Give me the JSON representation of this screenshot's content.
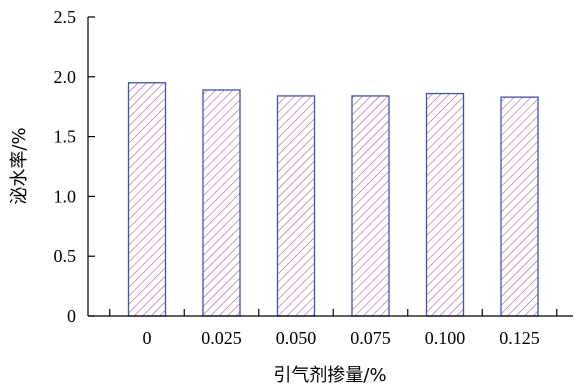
{
  "chart_data": {
    "type": "bar",
    "xlabel": "引气剂掺量/%",
    "ylabel": "泌水率/%",
    "categories": [
      "0",
      "0.025",
      "0.050",
      "0.075",
      "0.100",
      "0.125"
    ],
    "values": [
      1.95,
      1.89,
      1.84,
      1.84,
      1.86,
      1.83
    ],
    "ylim": [
      0,
      2.5
    ],
    "y_ticks": [
      "0",
      "0.5",
      "1.0",
      "1.5",
      "2.0",
      "2.5"
    ],
    "grid": false,
    "legend": "none",
    "bar_style": "diagonal-hatch",
    "colors": {
      "bar_edge": "#3a56b0",
      "hatch": "#b04a9a",
      "axis": "#000000"
    }
  }
}
